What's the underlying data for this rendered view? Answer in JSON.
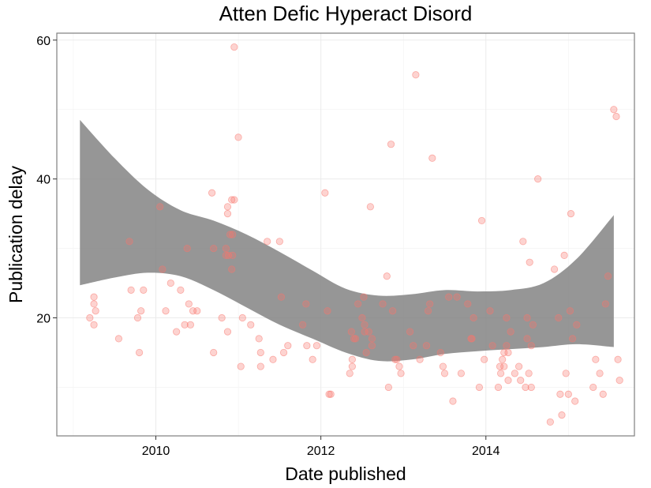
{
  "chart_data": {
    "type": "scatter",
    "title": "Atten Defic Hyperact Disord",
    "xlabel": "Date published",
    "ylabel": "Publication delay",
    "xlim": [
      2008.8,
      2015.8
    ],
    "ylim": [
      3,
      61
    ],
    "x_ticks": [
      2010,
      2012,
      2014
    ],
    "y_ticks": [
      20,
      40,
      60
    ],
    "grid": true,
    "legend": "none",
    "point_color": "#f8766d",
    "band_color": "#7f7f7f",
    "points": [
      {
        "x": 2009.2,
        "y": 20
      },
      {
        "x": 2009.25,
        "y": 23
      },
      {
        "x": 2009.25,
        "y": 22
      },
      {
        "x": 2009.27,
        "y": 21
      },
      {
        "x": 2009.25,
        "y": 19
      },
      {
        "x": 2009.55,
        "y": 17
      },
      {
        "x": 2009.68,
        "y": 31
      },
      {
        "x": 2009.7,
        "y": 24
      },
      {
        "x": 2009.78,
        "y": 20
      },
      {
        "x": 2009.82,
        "y": 21
      },
      {
        "x": 2009.85,
        "y": 24
      },
      {
        "x": 2009.8,
        "y": 15
      },
      {
        "x": 2010.05,
        "y": 36
      },
      {
        "x": 2010.08,
        "y": 27
      },
      {
        "x": 2010.12,
        "y": 21
      },
      {
        "x": 2010.18,
        "y": 25
      },
      {
        "x": 2010.25,
        "y": 18
      },
      {
        "x": 2010.3,
        "y": 24
      },
      {
        "x": 2010.35,
        "y": 19
      },
      {
        "x": 2010.38,
        "y": 30
      },
      {
        "x": 2010.4,
        "y": 22
      },
      {
        "x": 2010.42,
        "y": 19
      },
      {
        "x": 2010.45,
        "y": 21
      },
      {
        "x": 2010.5,
        "y": 21
      },
      {
        "x": 2010.68,
        "y": 38
      },
      {
        "x": 2010.7,
        "y": 30
      },
      {
        "x": 2010.7,
        "y": 15
      },
      {
        "x": 2010.8,
        "y": 20
      },
      {
        "x": 2010.85,
        "y": 29
      },
      {
        "x": 2010.85,
        "y": 30
      },
      {
        "x": 2010.87,
        "y": 36
      },
      {
        "x": 2010.87,
        "y": 35
      },
      {
        "x": 2010.88,
        "y": 29
      },
      {
        "x": 2010.9,
        "y": 32
      },
      {
        "x": 2010.92,
        "y": 37
      },
      {
        "x": 2010.93,
        "y": 32
      },
      {
        "x": 2010.93,
        "y": 29
      },
      {
        "x": 2010.92,
        "y": 27
      },
      {
        "x": 2010.95,
        "y": 37
      },
      {
        "x": 2010.87,
        "y": 18
      },
      {
        "x": 2010.95,
        "y": 59
      },
      {
        "x": 2011.0,
        "y": 46
      },
      {
        "x": 2011.03,
        "y": 13
      },
      {
        "x": 2011.05,
        "y": 20
      },
      {
        "x": 2011.15,
        "y": 19
      },
      {
        "x": 2011.25,
        "y": 17
      },
      {
        "x": 2011.27,
        "y": 15
      },
      {
        "x": 2011.27,
        "y": 13
      },
      {
        "x": 2011.35,
        "y": 31
      },
      {
        "x": 2011.42,
        "y": 14
      },
      {
        "x": 2011.5,
        "y": 31
      },
      {
        "x": 2011.52,
        "y": 23
      },
      {
        "x": 2011.55,
        "y": 15
      },
      {
        "x": 2011.6,
        "y": 16
      },
      {
        "x": 2011.78,
        "y": 19
      },
      {
        "x": 2011.82,
        "y": 22
      },
      {
        "x": 2011.83,
        "y": 16
      },
      {
        "x": 2011.9,
        "y": 14
      },
      {
        "x": 2011.95,
        "y": 16
      },
      {
        "x": 2012.05,
        "y": 38
      },
      {
        "x": 2012.08,
        "y": 21
      },
      {
        "x": 2012.1,
        "y": 9
      },
      {
        "x": 2012.12,
        "y": 9
      },
      {
        "x": 2012.35,
        "y": 12
      },
      {
        "x": 2012.37,
        "y": 18
      },
      {
        "x": 2012.38,
        "y": 14
      },
      {
        "x": 2012.38,
        "y": 13
      },
      {
        "x": 2012.4,
        "y": 17
      },
      {
        "x": 2012.42,
        "y": 17
      },
      {
        "x": 2012.45,
        "y": 22
      },
      {
        "x": 2012.5,
        "y": 20
      },
      {
        "x": 2012.52,
        "y": 23
      },
      {
        "x": 2012.53,
        "y": 19
      },
      {
        "x": 2012.53,
        "y": 18
      },
      {
        "x": 2012.55,
        "y": 15
      },
      {
        "x": 2012.58,
        "y": 18
      },
      {
        "x": 2012.6,
        "y": 36
      },
      {
        "x": 2012.62,
        "y": 17
      },
      {
        "x": 2012.62,
        "y": 16
      },
      {
        "x": 2012.75,
        "y": 22
      },
      {
        "x": 2012.8,
        "y": 26
      },
      {
        "x": 2012.82,
        "y": 10
      },
      {
        "x": 2012.85,
        "y": 45
      },
      {
        "x": 2012.87,
        "y": 21
      },
      {
        "x": 2012.9,
        "y": 14
      },
      {
        "x": 2012.92,
        "y": 14
      },
      {
        "x": 2012.95,
        "y": 13
      },
      {
        "x": 2012.97,
        "y": 12
      },
      {
        "x": 2013.08,
        "y": 18
      },
      {
        "x": 2013.12,
        "y": 16
      },
      {
        "x": 2013.15,
        "y": 55
      },
      {
        "x": 2013.2,
        "y": 14
      },
      {
        "x": 2013.28,
        "y": 16
      },
      {
        "x": 2013.3,
        "y": 21
      },
      {
        "x": 2013.32,
        "y": 22
      },
      {
        "x": 2013.35,
        "y": 43
      },
      {
        "x": 2013.45,
        "y": 15
      },
      {
        "x": 2013.48,
        "y": 13
      },
      {
        "x": 2013.5,
        "y": 12
      },
      {
        "x": 2013.55,
        "y": 23
      },
      {
        "x": 2013.6,
        "y": 8
      },
      {
        "x": 2013.65,
        "y": 23
      },
      {
        "x": 2013.7,
        "y": 12
      },
      {
        "x": 2013.78,
        "y": 22
      },
      {
        "x": 2013.82,
        "y": 17
      },
      {
        "x": 2013.83,
        "y": 17
      },
      {
        "x": 2013.85,
        "y": 20
      },
      {
        "x": 2013.92,
        "y": 10
      },
      {
        "x": 2013.95,
        "y": 34
      },
      {
        "x": 2013.98,
        "y": 14
      },
      {
        "x": 2014.05,
        "y": 21
      },
      {
        "x": 2014.08,
        "y": 16
      },
      {
        "x": 2014.15,
        "y": 10
      },
      {
        "x": 2014.17,
        "y": 13
      },
      {
        "x": 2014.18,
        "y": 12
      },
      {
        "x": 2014.2,
        "y": 14
      },
      {
        "x": 2014.22,
        "y": 13
      },
      {
        "x": 2014.22,
        "y": 15
      },
      {
        "x": 2014.25,
        "y": 20
      },
      {
        "x": 2014.25,
        "y": 16
      },
      {
        "x": 2014.27,
        "y": 15
      },
      {
        "x": 2014.27,
        "y": 11
      },
      {
        "x": 2014.3,
        "y": 18
      },
      {
        "x": 2014.35,
        "y": 12
      },
      {
        "x": 2014.4,
        "y": 13
      },
      {
        "x": 2014.42,
        "y": 11
      },
      {
        "x": 2014.45,
        "y": 31
      },
      {
        "x": 2014.48,
        "y": 10
      },
      {
        "x": 2014.5,
        "y": 20
      },
      {
        "x": 2014.5,
        "y": 17
      },
      {
        "x": 2014.52,
        "y": 12
      },
      {
        "x": 2014.53,
        "y": 28
      },
      {
        "x": 2014.55,
        "y": 10
      },
      {
        "x": 2014.55,
        "y": 16
      },
      {
        "x": 2014.57,
        "y": 19
      },
      {
        "x": 2014.63,
        "y": 40
      },
      {
        "x": 2014.78,
        "y": 5
      },
      {
        "x": 2014.83,
        "y": 27
      },
      {
        "x": 2014.88,
        "y": 20
      },
      {
        "x": 2014.9,
        "y": 9
      },
      {
        "x": 2014.92,
        "y": 6
      },
      {
        "x": 2014.95,
        "y": 29
      },
      {
        "x": 2014.97,
        "y": 12
      },
      {
        "x": 2015.0,
        "y": 9
      },
      {
        "x": 2015.02,
        "y": 21
      },
      {
        "x": 2015.03,
        "y": 35
      },
      {
        "x": 2015.05,
        "y": 17
      },
      {
        "x": 2015.08,
        "y": 8
      },
      {
        "x": 2015.1,
        "y": 19
      },
      {
        "x": 2015.3,
        "y": 10
      },
      {
        "x": 2015.33,
        "y": 14
      },
      {
        "x": 2015.38,
        "y": 12
      },
      {
        "x": 2015.42,
        "y": 9
      },
      {
        "x": 2015.45,
        "y": 22
      },
      {
        "x": 2015.48,
        "y": 26
      },
      {
        "x": 2015.55,
        "y": 50
      },
      {
        "x": 2015.58,
        "y": 49
      },
      {
        "x": 2015.6,
        "y": 14
      },
      {
        "x": 2015.62,
        "y": 11
      }
    ],
    "confidence_band": [
      {
        "x": 2009.08,
        "upper": 48.5,
        "lower": 24.7
      },
      {
        "x": 2009.5,
        "upper": 43.0,
        "lower": 25.8
      },
      {
        "x": 2009.9,
        "upper": 38.5,
        "lower": 26.5
      },
      {
        "x": 2010.3,
        "upper": 35.5,
        "lower": 26.0
      },
      {
        "x": 2010.7,
        "upper": 34.0,
        "lower": 24.0
      },
      {
        "x": 2011.1,
        "upper": 32.0,
        "lower": 21.5
      },
      {
        "x": 2011.5,
        "upper": 29.5,
        "lower": 19.0
      },
      {
        "x": 2011.9,
        "upper": 26.8,
        "lower": 17.0
      },
      {
        "x": 2012.3,
        "upper": 24.2,
        "lower": 15.0
      },
      {
        "x": 2012.7,
        "upper": 23.2,
        "lower": 13.8
      },
      {
        "x": 2013.1,
        "upper": 23.4,
        "lower": 14.0
      },
      {
        "x": 2013.5,
        "upper": 24.0,
        "lower": 14.8
      },
      {
        "x": 2013.9,
        "upper": 23.8,
        "lower": 15.2
      },
      {
        "x": 2014.3,
        "upper": 24.0,
        "lower": 15.5
      },
      {
        "x": 2014.7,
        "upper": 25.0,
        "lower": 15.8
      },
      {
        "x": 2015.1,
        "upper": 28.5,
        "lower": 16.2
      },
      {
        "x": 2015.55,
        "upper": 34.8,
        "lower": 15.8
      }
    ]
  }
}
